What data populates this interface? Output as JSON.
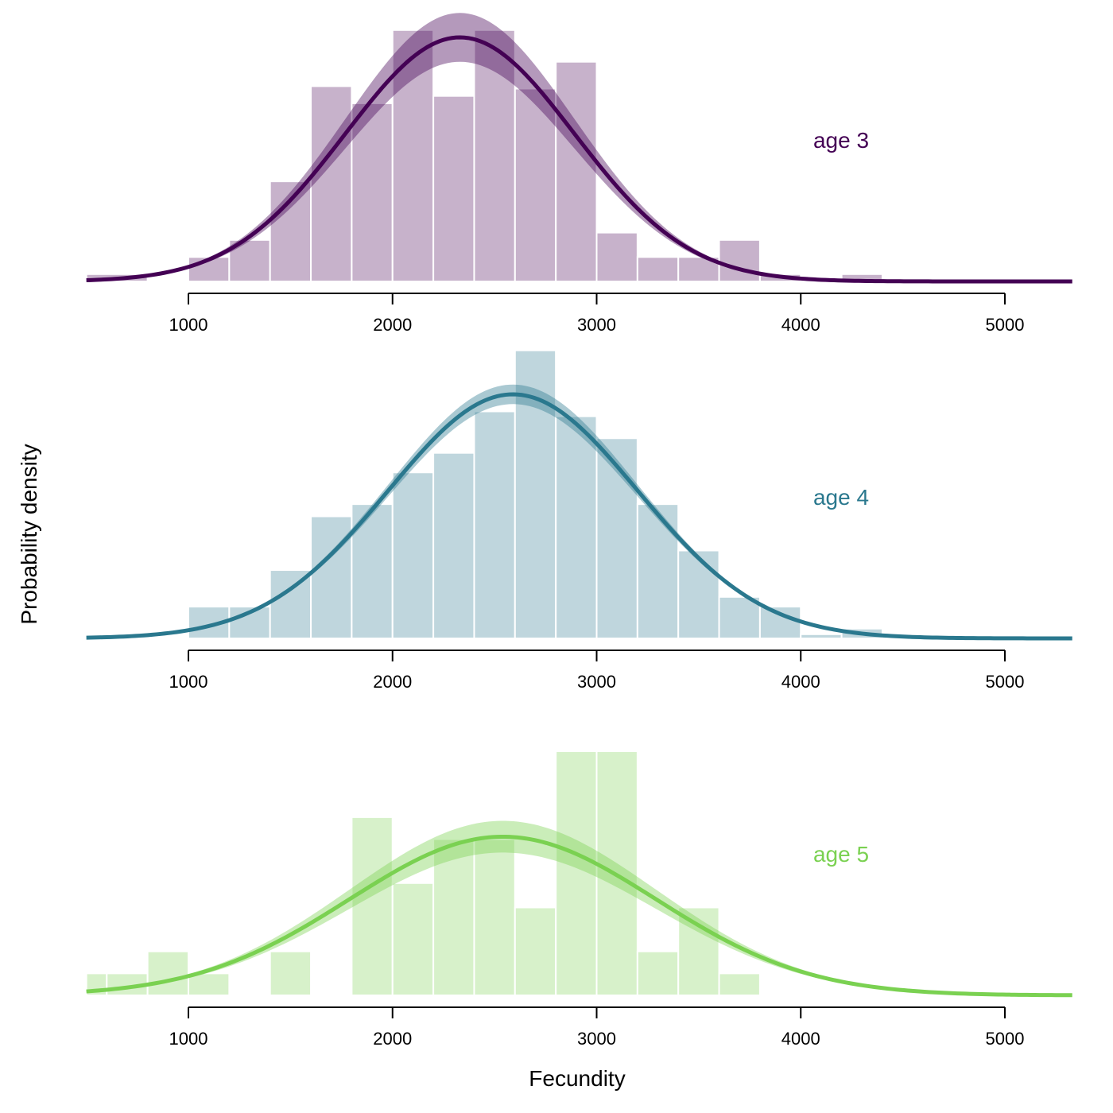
{
  "chart_data": {
    "type": "histogram-density",
    "xlabel": "Fecundity",
    "ylabel": "Probability density",
    "xlim": [
      500,
      5330
    ],
    "xticks": [
      "1000",
      "2000",
      "3000",
      "4000",
      "5000"
    ],
    "bin_width": 200,
    "grid": false,
    "panels": [
      {
        "label": "age 3",
        "color": "#440154",
        "bins": [
          [
            500,
            800,
            0.03
          ],
          [
            1000,
            1200,
            0.1
          ],
          [
            1200,
            1400,
            0.17
          ],
          [
            1400,
            1600,
            0.41
          ],
          [
            1600,
            1800,
            0.8
          ],
          [
            1800,
            2000,
            0.73
          ],
          [
            2000,
            2200,
            1.03
          ],
          [
            2200,
            2400,
            0.76
          ],
          [
            2400,
            2600,
            1.03
          ],
          [
            2600,
            2800,
            0.79
          ],
          [
            2800,
            3000,
            0.9
          ],
          [
            3000,
            3200,
            0.2
          ],
          [
            3200,
            3400,
            0.1
          ],
          [
            3400,
            3600,
            0.1
          ],
          [
            3600,
            3800,
            0.17
          ],
          [
            3800,
            4000,
            0.03
          ],
          [
            4200,
            4400,
            0.03
          ]
        ],
        "fit": {
          "mean": 2330,
          "sd": 560,
          "peak": 1.0,
          "band": 0.1
        }
      },
      {
        "label": "age 4",
        "color": "#2a788e",
        "bins": [
          [
            800,
            1000,
            0.005
          ],
          [
            1000,
            1200,
            0.13
          ],
          [
            1200,
            1400,
            0.13
          ],
          [
            1400,
            1600,
            0.28
          ],
          [
            1600,
            1800,
            0.5
          ],
          [
            1800,
            2000,
            0.55
          ],
          [
            2000,
            2200,
            0.68
          ],
          [
            2200,
            2400,
            0.76
          ],
          [
            2400,
            2600,
            0.93
          ],
          [
            2600,
            2800,
            1.18
          ],
          [
            2800,
            3000,
            0.91
          ],
          [
            3000,
            3200,
            0.82
          ],
          [
            3200,
            3400,
            0.55
          ],
          [
            3400,
            3600,
            0.36
          ],
          [
            3600,
            3800,
            0.17
          ],
          [
            3800,
            4000,
            0.13
          ],
          [
            4000,
            4200,
            0.017
          ],
          [
            4200,
            4400,
            0.04
          ]
        ],
        "fit": {
          "mean": 2590,
          "sd": 610,
          "peak": 1.0,
          "band": 0.04
        }
      },
      {
        "label": "age 5",
        "color": "#7ad151",
        "bins": [
          [
            500,
            600,
            0.09
          ],
          [
            600,
            800,
            0.09
          ],
          [
            800,
            1000,
            0.18
          ],
          [
            1000,
            1200,
            0.09
          ],
          [
            1400,
            1600,
            0.18
          ],
          [
            1800,
            2000,
            0.73
          ],
          [
            2000,
            2200,
            0.46
          ],
          [
            2200,
            2400,
            0.64
          ],
          [
            2400,
            2600,
            0.64
          ],
          [
            2600,
            2800,
            0.36
          ],
          [
            2800,
            3000,
            1.0
          ],
          [
            3000,
            3200,
            1.0
          ],
          [
            3200,
            3400,
            0.18
          ],
          [
            3400,
            3600,
            0.36
          ],
          [
            3600,
            3800,
            0.09
          ]
        ],
        "fit": {
          "mean": 2540,
          "sd": 750,
          "peak": 0.65,
          "band": 0.1
        }
      }
    ]
  }
}
